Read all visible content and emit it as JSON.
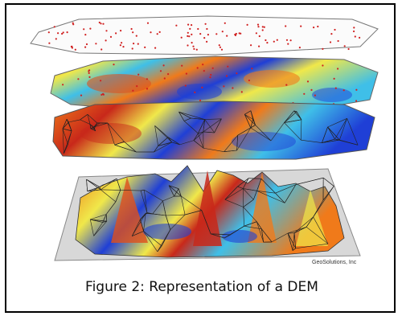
{
  "figure": {
    "caption": "Figure 2: Representation of a DEM",
    "credit": "GeoSolutions, Inc",
    "layers": [
      "point-samples",
      "interpolated-surface",
      "tin-mesh",
      "elevation-3d"
    ],
    "colors": {
      "low": "#1f3fd6",
      "mid": "#3fbfe8",
      "high1": "#f0e84a",
      "high2": "#f07a1a",
      "peak": "#c8281a",
      "points": "#d02020"
    }
  }
}
